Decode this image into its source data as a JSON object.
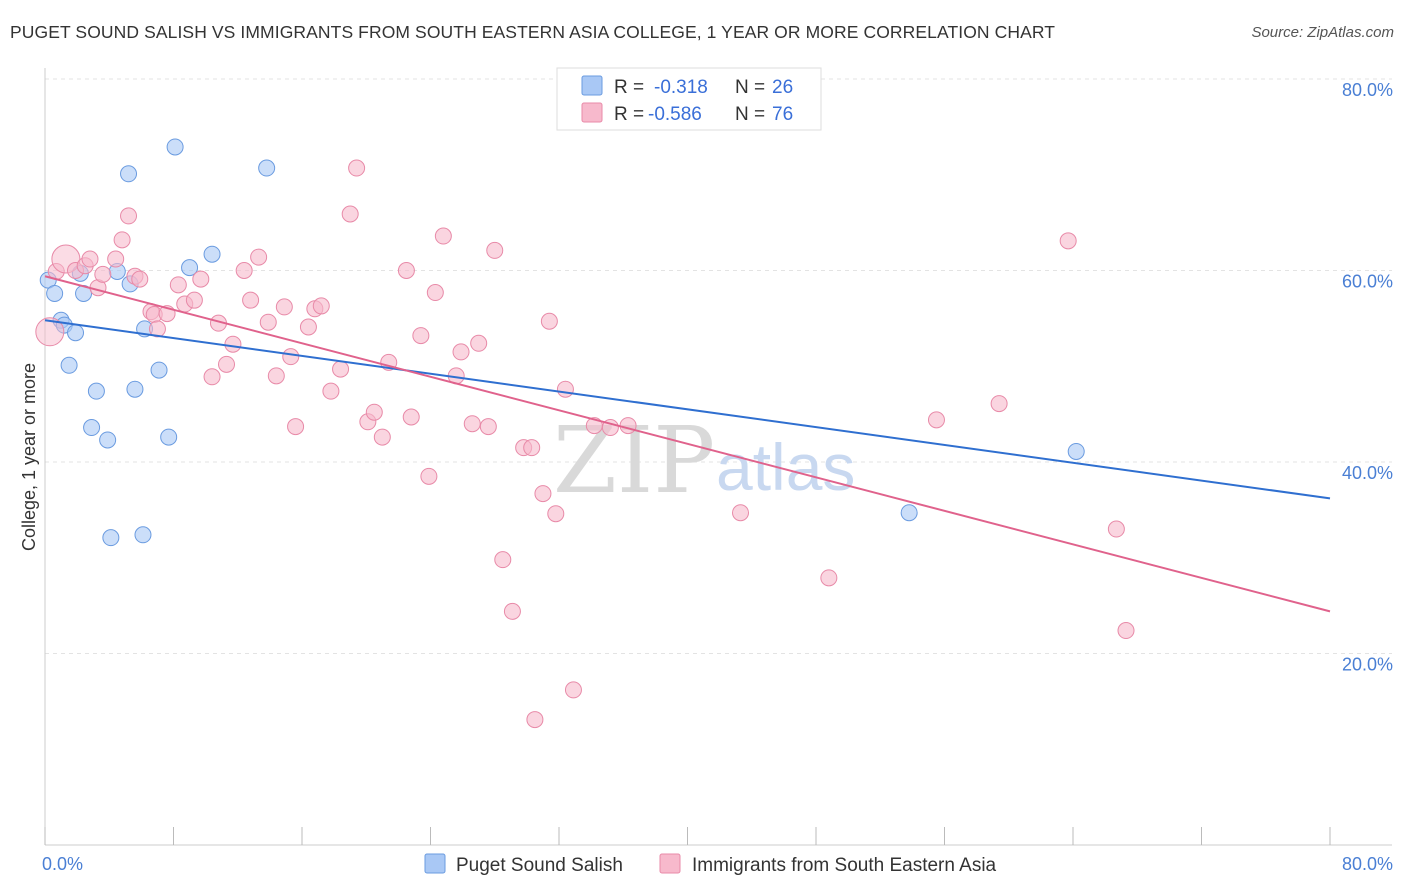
{
  "title": "PUGET SOUND SALISH VS IMMIGRANTS FROM SOUTH EASTERN ASIA COLLEGE, 1 YEAR OR MORE CORRELATION CHART",
  "source": "Source: ZipAtlas.com",
  "watermark": {
    "zip": "ZIP",
    "atlas": "atlas"
  },
  "legend": {
    "rows": [
      {
        "r_label": "R =",
        "r_value": "-0.318",
        "n_label": "N =",
        "n_value": "26",
        "color": "#a9c8f5"
      },
      {
        "r_label": "R =",
        "r_value": "-0.586",
        "n_label": "N =",
        "n_value": "76",
        "color": "#f7b9cc"
      }
    ]
  },
  "chart_data": {
    "type": "scatter",
    "title": "PUGET SOUND SALISH VS IMMIGRANTS FROM SOUTH EASTERN ASIA COLLEGE, 1 YEAR OR MORE CORRELATION CHART",
    "xlabel": "",
    "ylabel": "College, 1 year or more",
    "xlim": [
      0,
      80
    ],
    "ylim": [
      0,
      80
    ],
    "x_tick_labels": [
      "0.0%",
      "80.0%"
    ],
    "y_ticks": [
      20,
      40,
      60,
      80
    ],
    "y_tick_labels": [
      "20.0%",
      "40.0%",
      "60.0%",
      "80.0%"
    ],
    "grid": true,
    "legend_position": "top-center",
    "series": [
      {
        "name": "Puget Sound Salish",
        "color": "#a9c8f5",
        "edge": "#6a9be0",
        "line_color": "#2f6fd0",
        "trend": {
          "x": [
            0,
            80
          ],
          "y": [
            54.8,
            36.2
          ]
        },
        "points": [
          [
            0.2,
            59.0
          ],
          [
            0.6,
            57.6
          ],
          [
            1.0,
            54.8
          ],
          [
            1.2,
            54.3
          ],
          [
            1.5,
            50.1
          ],
          [
            1.9,
            53.5
          ],
          [
            2.2,
            59.7
          ],
          [
            2.4,
            57.6
          ],
          [
            2.9,
            43.6
          ],
          [
            3.2,
            47.4
          ],
          [
            3.9,
            42.3
          ],
          [
            4.1,
            32.1
          ],
          [
            4.5,
            59.9
          ],
          [
            5.2,
            70.1
          ],
          [
            5.3,
            58.6
          ],
          [
            5.6,
            47.6
          ],
          [
            6.1,
            32.4
          ],
          [
            6.2,
            53.9
          ],
          [
            7.1,
            49.6
          ],
          [
            7.7,
            42.6
          ],
          [
            8.1,
            72.9
          ],
          [
            9.0,
            60.3
          ],
          [
            10.4,
            61.7
          ],
          [
            13.8,
            70.7
          ],
          [
            53.8,
            34.7
          ],
          [
            64.2,
            41.1
          ]
        ]
      },
      {
        "name": "Immigrants from South Eastern Asia",
        "color": "#f7b9cc",
        "edge": "#e88aa8",
        "line_color": "#e0628c",
        "trend": {
          "x": [
            0,
            80
          ],
          "y": [
            59.4,
            24.4
          ]
        },
        "points": [
          [
            0.3,
            53.6
          ],
          [
            0.7,
            59.9
          ],
          [
            1.3,
            61.2
          ],
          [
            1.9,
            60.0
          ],
          [
            2.5,
            60.5
          ],
          [
            2.8,
            61.2
          ],
          [
            3.3,
            58.2
          ],
          [
            3.6,
            59.6
          ],
          [
            4.4,
            61.2
          ],
          [
            4.8,
            63.2
          ],
          [
            5.2,
            65.7
          ],
          [
            5.6,
            59.4
          ],
          [
            5.9,
            59.1
          ],
          [
            6.6,
            55.7
          ],
          [
            6.8,
            55.4
          ],
          [
            7.0,
            53.9
          ],
          [
            7.6,
            55.5
          ],
          [
            8.3,
            58.5
          ],
          [
            8.7,
            56.5
          ],
          [
            9.3,
            56.9
          ],
          [
            9.7,
            59.1
          ],
          [
            10.4,
            48.9
          ],
          [
            10.8,
            54.5
          ],
          [
            11.3,
            50.2
          ],
          [
            11.7,
            52.3
          ],
          [
            12.4,
            60.0
          ],
          [
            12.8,
            56.9
          ],
          [
            13.3,
            61.4
          ],
          [
            13.9,
            54.6
          ],
          [
            14.4,
            49.0
          ],
          [
            14.9,
            56.2
          ],
          [
            15.3,
            51.0
          ],
          [
            15.6,
            43.7
          ],
          [
            16.4,
            54.1
          ],
          [
            16.8,
            56.0
          ],
          [
            17.2,
            56.3
          ],
          [
            17.8,
            47.4
          ],
          [
            18.4,
            49.7
          ],
          [
            19.0,
            65.9
          ],
          [
            19.4,
            70.7
          ],
          [
            20.1,
            44.2
          ],
          [
            20.5,
            45.2
          ],
          [
            21.0,
            42.6
          ],
          [
            21.4,
            50.4
          ],
          [
            22.5,
            60.0
          ],
          [
            22.8,
            44.7
          ],
          [
            23.4,
            53.2
          ],
          [
            23.9,
            38.5
          ],
          [
            24.3,
            57.7
          ],
          [
            24.8,
            63.6
          ],
          [
            25.6,
            49.0
          ],
          [
            25.9,
            51.5
          ],
          [
            26.6,
            44.0
          ],
          [
            27.0,
            52.4
          ],
          [
            27.6,
            43.7
          ],
          [
            28.0,
            62.1
          ],
          [
            28.5,
            29.8
          ],
          [
            29.1,
            24.4
          ],
          [
            29.8,
            41.5
          ],
          [
            30.3,
            41.5
          ],
          [
            30.5,
            13.1
          ],
          [
            31.0,
            36.7
          ],
          [
            31.4,
            54.7
          ],
          [
            31.8,
            34.6
          ],
          [
            32.4,
            47.6
          ],
          [
            32.9,
            16.2
          ],
          [
            34.2,
            43.8
          ],
          [
            35.2,
            43.6
          ],
          [
            36.3,
            43.8
          ],
          [
            43.3,
            34.7
          ],
          [
            48.8,
            27.9
          ],
          [
            55.5,
            44.4
          ],
          [
            59.4,
            46.1
          ],
          [
            63.7,
            63.1
          ],
          [
            66.7,
            33.0
          ],
          [
            67.3,
            22.4
          ]
        ]
      }
    ]
  }
}
